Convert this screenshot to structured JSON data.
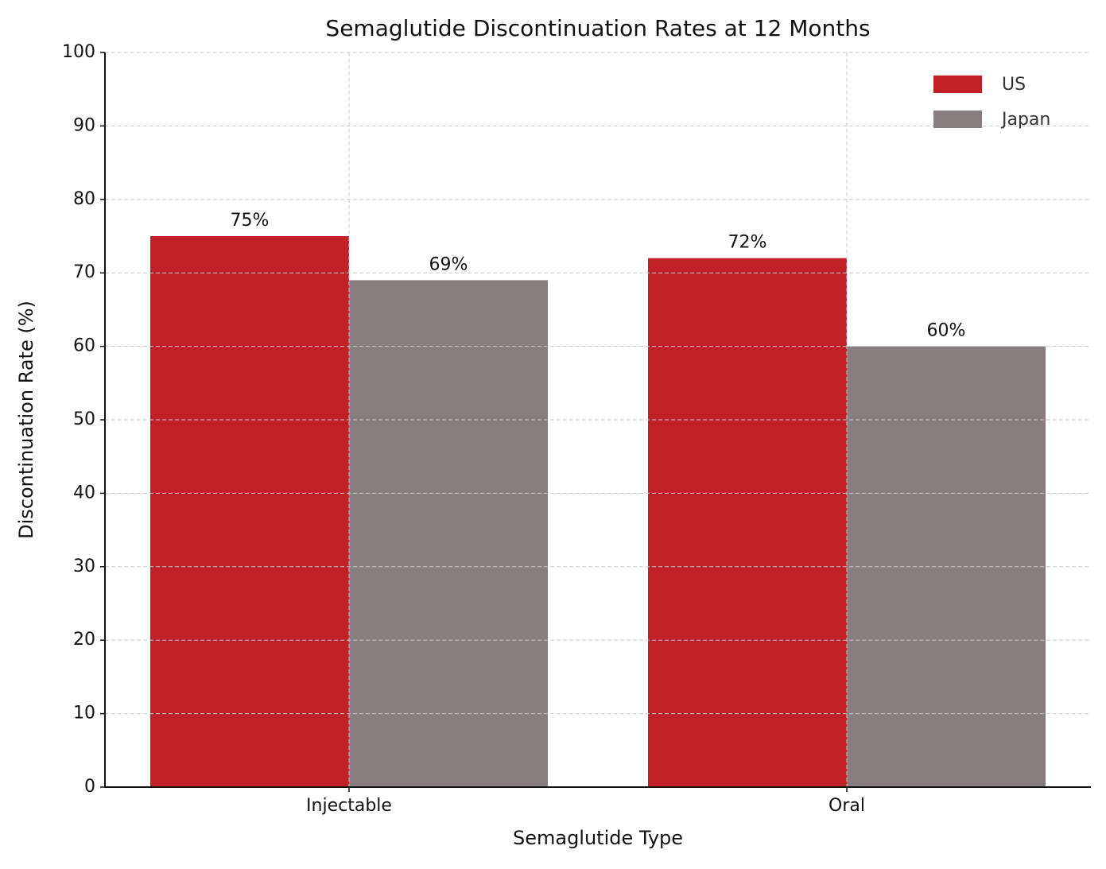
{
  "chart_data": {
    "type": "grouped_bar",
    "title": "Semaglutide Discontinuation Rates at 12 Months",
    "x_label": "Semaglutide Type",
    "y_label": "Discontinuation Rate (%)",
    "categories": [
      "Injectable",
      "Oral"
    ],
    "series": [
      {
        "name": "US",
        "color": "#c02026",
        "values": [
          75,
          72
        ],
        "value_labels": [
          "75%",
          "72%"
        ]
      },
      {
        "name": "Japan",
        "color": "#887d7f",
        "values": [
          69,
          60
        ],
        "value_labels": [
          "69%",
          "60%"
        ]
      }
    ],
    "ylim": [
      0,
      100
    ],
    "yticks": [
      0,
      10,
      20,
      30,
      40,
      50,
      60,
      70,
      80,
      90,
      100
    ],
    "grid": true,
    "legend": "upper right"
  }
}
